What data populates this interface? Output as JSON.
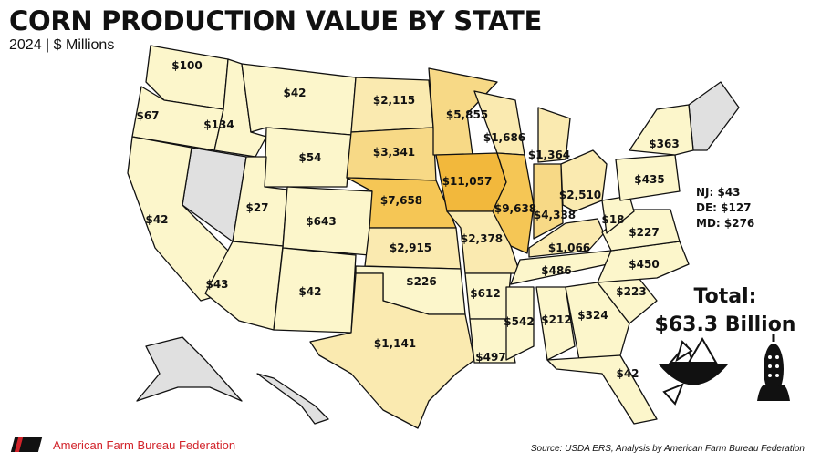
{
  "title": "CORN PRODUCTION VALUE BY STATE",
  "subtitle": "2024 | $ Millions",
  "colors": {
    "tier1": "#fcf6cb",
    "tier2": "#faeab0",
    "tier3": "#f7d986",
    "tier4": "#f5c655",
    "tier5": "#f2b83c",
    "no_data": "#e0e0e0"
  },
  "states": [
    {
      "code": "WA",
      "label": "$100",
      "value": 100
    },
    {
      "code": "OR",
      "label": "$67",
      "value": 67
    },
    {
      "code": "CA",
      "label": "$42",
      "value": 42
    },
    {
      "code": "ID",
      "label": "$134",
      "value": 134
    },
    {
      "code": "MT",
      "label": "$42",
      "value": 42
    },
    {
      "code": "WY",
      "label": "$54",
      "value": 54
    },
    {
      "code": "UT",
      "label": "$27",
      "value": 27
    },
    {
      "code": "CO",
      "label": "$643",
      "value": 643
    },
    {
      "code": "AZ",
      "label": "$43",
      "value": 43
    },
    {
      "code": "NM",
      "label": "$42",
      "value": 42
    },
    {
      "code": "ND",
      "label": "$2,115",
      "value": 2115
    },
    {
      "code": "SD",
      "label": "$3,341",
      "value": 3341
    },
    {
      "code": "NE",
      "label": "$7,658",
      "value": 7658
    },
    {
      "code": "KS",
      "label": "$2,915",
      "value": 2915
    },
    {
      "code": "OK",
      "label": "$226",
      "value": 226
    },
    {
      "code": "TX",
      "label": "$1,141",
      "value": 1141
    },
    {
      "code": "MN",
      "label": "$5,855",
      "value": 5855
    },
    {
      "code": "IA",
      "label": "$11,057",
      "value": 11057
    },
    {
      "code": "MO",
      "label": "$2,378",
      "value": 2378
    },
    {
      "code": "AR",
      "label": "$612",
      "value": 612
    },
    {
      "code": "LA",
      "label": "$497",
      "value": 497
    },
    {
      "code": "WI",
      "label": "$1,686",
      "value": 1686
    },
    {
      "code": "IL",
      "label": "$9,638",
      "value": 9638
    },
    {
      "code": "MI",
      "label": "$1,364",
      "value": 1364
    },
    {
      "code": "IN",
      "label": "$4,338",
      "value": 4338
    },
    {
      "code": "OH",
      "label": "$2,510",
      "value": 2510
    },
    {
      "code": "KY",
      "label": "$1,066",
      "value": 1066
    },
    {
      "code": "TN",
      "label": "$486",
      "value": 486
    },
    {
      "code": "MS",
      "label": "$542",
      "value": 542
    },
    {
      "code": "AL",
      "label": "$212",
      "value": 212
    },
    {
      "code": "GA",
      "label": "$324",
      "value": 324
    },
    {
      "code": "FL",
      "label": "$42",
      "value": 42
    },
    {
      "code": "SC",
      "label": "$223",
      "value": 223
    },
    {
      "code": "NC",
      "label": "$450",
      "value": 450
    },
    {
      "code": "VA",
      "label": "$227",
      "value": 227
    },
    {
      "code": "WV",
      "label": "$18",
      "value": 18
    },
    {
      "code": "PA",
      "label": "$435",
      "value": 435
    },
    {
      "code": "NY",
      "label": "$363",
      "value": 363
    }
  ],
  "no_data_states": [
    "NV",
    "AK",
    "HI",
    "NEW_ENGLAND"
  ],
  "small_states": [
    {
      "code": "NJ",
      "label": "NJ: $43",
      "value": 43
    },
    {
      "code": "DE",
      "label": "DE: $127",
      "value": 127
    },
    {
      "code": "MD",
      "label": "MD: $276",
      "value": 276
    }
  ],
  "total": {
    "label": "Total:",
    "value": "$63.3 Billion"
  },
  "footer": {
    "org": "American Farm Bureau Federation",
    "source": "Source: USDA ERS, Analysis by American Farm Bureau Federation"
  }
}
